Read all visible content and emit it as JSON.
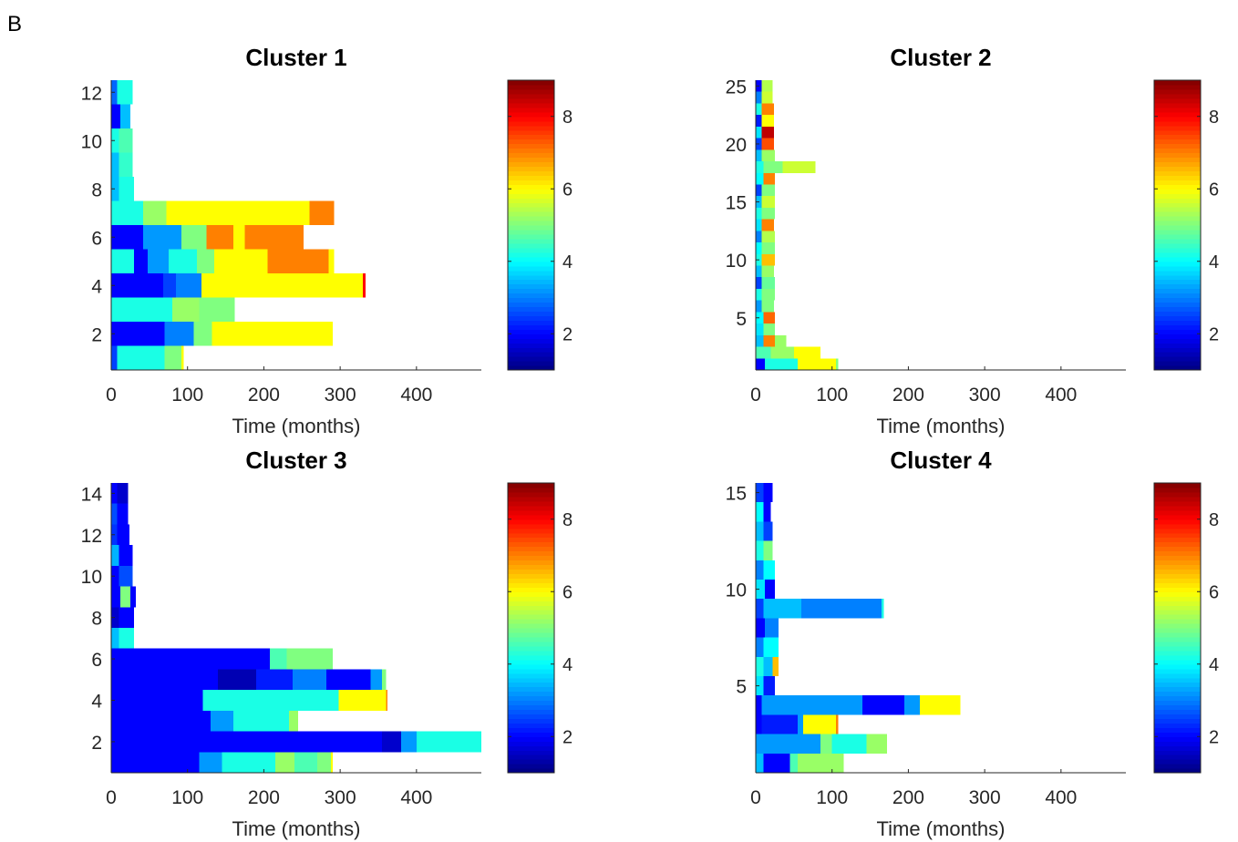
{
  "figure": {
    "panel_letter": "B"
  },
  "colormap": {
    "name": "jet",
    "cmin": 1,
    "cmax": 9,
    "ticks": [
      2,
      4,
      6,
      8
    ]
  },
  "chart_data": [
    {
      "type": "heatmap",
      "title": "Cluster 1",
      "xlabel": "Time (months)",
      "ylabel": "",
      "xlim": [
        0,
        485
      ],
      "ylim": [
        0.5,
        12.5
      ],
      "xticks": [
        0,
        100,
        200,
        300,
        400
      ],
      "yticks": [
        2,
        4,
        6,
        8,
        10,
        12
      ],
      "rows": [
        [
          [
            0,
            8,
            2.5
          ],
          [
            8,
            70,
            4.2
          ],
          [
            70,
            92,
            5.0
          ],
          [
            92,
            95,
            6.0
          ]
        ],
        [
          [
            0,
            70,
            2.0
          ],
          [
            70,
            108,
            3.0
          ],
          [
            108,
            132,
            5.0
          ],
          [
            132,
            290,
            6.0
          ]
        ],
        [
          [
            0,
            80,
            4.2
          ],
          [
            80,
            115,
            5.2
          ],
          [
            115,
            162,
            5.0
          ]
        ],
        [
          [
            0,
            68,
            2.0
          ],
          [
            68,
            85,
            2.5
          ],
          [
            85,
            118,
            3.0
          ],
          [
            118,
            330,
            6.0
          ],
          [
            330,
            333,
            8.0
          ]
        ],
        [
          [
            0,
            30,
            4.2
          ],
          [
            30,
            48,
            2.0
          ],
          [
            48,
            75,
            3.2
          ],
          [
            75,
            112,
            4.2
          ],
          [
            112,
            135,
            5.0
          ],
          [
            135,
            205,
            6.0
          ],
          [
            205,
            285,
            7.0
          ],
          [
            285,
            292,
            6.0
          ]
        ],
        [
          [
            0,
            42,
            2.0
          ],
          [
            42,
            92,
            3.2
          ],
          [
            92,
            125,
            5.0
          ],
          [
            125,
            160,
            7.0
          ],
          [
            160,
            175,
            6.0
          ],
          [
            175,
            252,
            7.0
          ]
        ],
        [
          [
            0,
            42,
            4.2
          ],
          [
            42,
            72,
            5.2
          ],
          [
            72,
            260,
            6.0
          ],
          [
            260,
            292,
            7.0
          ]
        ],
        [
          [
            0,
            10,
            3.5
          ],
          [
            10,
            30,
            4.2
          ]
        ],
        [
          [
            0,
            10,
            3.5
          ],
          [
            10,
            28,
            4.4
          ]
        ],
        [
          [
            0,
            10,
            4.2
          ],
          [
            10,
            28,
            4.6
          ]
        ],
        [
          [
            0,
            12,
            2.0
          ],
          [
            12,
            25,
            3.5
          ]
        ],
        [
          [
            0,
            8,
            2.8
          ],
          [
            8,
            28,
            4.2
          ]
        ]
      ]
    },
    {
      "type": "heatmap",
      "title": "Cluster 2",
      "xlabel": "Time (months)",
      "ylabel": "",
      "xlim": [
        0,
        485
      ],
      "ylim": [
        0.5,
        25.5
      ],
      "xticks": [
        0,
        100,
        200,
        300,
        400
      ],
      "yticks": [
        5,
        10,
        15,
        20,
        25
      ],
      "rows": [
        [
          [
            0,
            12,
            2.0
          ],
          [
            12,
            55,
            4.2
          ],
          [
            55,
            105,
            6.0
          ],
          [
            105,
            108,
            5.0
          ]
        ],
        [
          [
            0,
            20,
            4.6
          ],
          [
            20,
            50,
            5.2
          ],
          [
            50,
            85,
            6.0
          ]
        ],
        [
          [
            0,
            10,
            3.5
          ],
          [
            10,
            25,
            7.0
          ],
          [
            25,
            40,
            5.2
          ]
        ],
        [
          [
            0,
            10,
            3.8
          ],
          [
            10,
            25,
            5.0
          ]
        ],
        [
          [
            0,
            10,
            4.0
          ],
          [
            10,
            25,
            7.2
          ]
        ],
        [
          [
            0,
            8,
            3.2
          ],
          [
            8,
            24,
            5.0
          ]
        ],
        [
          [
            0,
            8,
            4.2
          ],
          [
            8,
            25,
            5.0
          ]
        ],
        [
          [
            0,
            8,
            2.5
          ],
          [
            8,
            25,
            4.8
          ]
        ],
        [
          [
            0,
            8,
            3.5
          ],
          [
            8,
            24,
            5.2
          ]
        ],
        [
          [
            0,
            8,
            4.2
          ],
          [
            8,
            25,
            6.5
          ]
        ],
        [
          [
            0,
            8,
            4.0
          ],
          [
            8,
            25,
            5.0
          ]
        ],
        [
          [
            0,
            8,
            3.0
          ],
          [
            8,
            25,
            5.4
          ]
        ],
        [
          [
            0,
            8,
            3.8
          ],
          [
            8,
            24,
            7.0
          ]
        ],
        [
          [
            0,
            8,
            4.2
          ],
          [
            8,
            25,
            5.0
          ]
        ],
        [
          [
            0,
            8,
            3.5
          ],
          [
            8,
            25,
            5.6
          ]
        ],
        [
          [
            0,
            8,
            2.5
          ],
          [
            8,
            25,
            5.0
          ]
        ],
        [
          [
            0,
            10,
            4.0
          ],
          [
            10,
            25,
            7.0
          ]
        ],
        [
          [
            0,
            10,
            4.2
          ],
          [
            10,
            35,
            5.0
          ],
          [
            35,
            78,
            5.6
          ]
        ],
        [
          [
            0,
            8,
            3.5
          ],
          [
            8,
            25,
            5.2
          ]
        ],
        [
          [
            0,
            8,
            2.5
          ],
          [
            8,
            24,
            7.4
          ]
        ],
        [
          [
            0,
            8,
            3.8
          ],
          [
            8,
            24,
            8.5
          ]
        ],
        [
          [
            0,
            8,
            2.2
          ],
          [
            8,
            24,
            6.0
          ]
        ],
        [
          [
            0,
            8,
            4.2
          ],
          [
            8,
            24,
            7.0
          ]
        ],
        [
          [
            0,
            8,
            3.0
          ],
          [
            8,
            22,
            5.6
          ]
        ],
        [
          [
            0,
            8,
            2.0
          ],
          [
            8,
            22,
            5.4
          ]
        ]
      ]
    },
    {
      "type": "heatmap",
      "title": "Cluster 3",
      "xlabel": "Time (months)",
      "ylabel": "",
      "xlim": [
        0,
        485
      ],
      "ylim": [
        0.5,
        14.5
      ],
      "xticks": [
        0,
        100,
        200,
        300,
        400
      ],
      "yticks": [
        2,
        4,
        6,
        8,
        10,
        12,
        14
      ],
      "rows": [
        [
          [
            0,
            115,
            2.0
          ],
          [
            115,
            145,
            3.2
          ],
          [
            145,
            215,
            4.2
          ],
          [
            215,
            240,
            5.2
          ],
          [
            240,
            270,
            4.6
          ],
          [
            270,
            288,
            5.0
          ],
          [
            288,
            290,
            6.0
          ]
        ],
        [
          [
            0,
            355,
            2.0
          ],
          [
            355,
            380,
            1.6
          ],
          [
            380,
            400,
            3.2
          ],
          [
            400,
            485,
            4.2
          ]
        ],
        [
          [
            0,
            130,
            2.0
          ],
          [
            130,
            160,
            3.2
          ],
          [
            160,
            233,
            4.2
          ],
          [
            233,
            245,
            5.2
          ]
        ],
        [
          [
            0,
            120,
            2.0
          ],
          [
            120,
            298,
            4.2
          ],
          [
            298,
            360,
            6.0
          ],
          [
            360,
            362,
            7.0
          ]
        ],
        [
          [
            0,
            140,
            2.0
          ],
          [
            140,
            190,
            1.4
          ],
          [
            190,
            238,
            2.2
          ],
          [
            238,
            282,
            3.0
          ],
          [
            282,
            340,
            2.0
          ],
          [
            340,
            355,
            3.2
          ],
          [
            355,
            360,
            5.0
          ]
        ],
        [
          [
            0,
            208,
            2.0
          ],
          [
            208,
            230,
            4.6
          ],
          [
            230,
            290,
            5.0
          ]
        ],
        [
          [
            0,
            10,
            3.5
          ],
          [
            10,
            30,
            4.2
          ]
        ],
        [
          [
            0,
            10,
            1.6
          ],
          [
            10,
            30,
            2.0
          ]
        ],
        [
          [
            0,
            12,
            2.0
          ],
          [
            12,
            25,
            5.0
          ],
          [
            25,
            32,
            2.0
          ]
        ],
        [
          [
            0,
            10,
            2.0
          ],
          [
            10,
            28,
            2.6
          ]
        ],
        [
          [
            0,
            10,
            3.4
          ],
          [
            10,
            28,
            2.0
          ]
        ],
        [
          [
            0,
            8,
            2.4
          ],
          [
            8,
            24,
            2.0
          ]
        ],
        [
          [
            0,
            8,
            2.6
          ],
          [
            8,
            22,
            2.0
          ]
        ],
        [
          [
            0,
            8,
            2.0
          ],
          [
            8,
            22,
            1.6
          ]
        ]
      ]
    },
    {
      "type": "heatmap",
      "title": "Cluster 4",
      "xlabel": "Time (months)",
      "ylabel": "",
      "xlim": [
        0,
        485
      ],
      "ylim": [
        0.5,
        15.5
      ],
      "xticks": [
        0,
        100,
        200,
        300,
        400
      ],
      "yticks": [
        5,
        10,
        15
      ],
      "rows": [
        [
          [
            0,
            10,
            3.5
          ],
          [
            10,
            45,
            2.0
          ],
          [
            45,
            55,
            4.6
          ],
          [
            55,
            115,
            5.2
          ]
        ],
        [
          [
            0,
            85,
            3.2
          ],
          [
            85,
            100,
            5.0
          ],
          [
            100,
            145,
            4.2
          ],
          [
            145,
            172,
            5.2
          ]
        ],
        [
          [
            0,
            8,
            2.0
          ],
          [
            8,
            55,
            2.2
          ],
          [
            55,
            62,
            3.2
          ],
          [
            62,
            105,
            6.0
          ],
          [
            105,
            108,
            7.0
          ]
        ],
        [
          [
            0,
            8,
            2.0
          ],
          [
            8,
            140,
            3.2
          ],
          [
            140,
            195,
            2.0
          ],
          [
            195,
            215,
            3.2
          ],
          [
            215,
            268,
            6.0
          ]
        ],
        [
          [
            0,
            10,
            3.8
          ],
          [
            10,
            25,
            2.2
          ]
        ],
        [
          [
            0,
            10,
            4.2
          ],
          [
            10,
            22,
            3.5
          ],
          [
            22,
            30,
            6.5
          ]
        ],
        [
          [
            0,
            10,
            3.0
          ],
          [
            10,
            30,
            4.0
          ]
        ],
        [
          [
            0,
            12,
            2.0
          ],
          [
            12,
            30,
            3.0
          ]
        ],
        [
          [
            0,
            10,
            2.5
          ],
          [
            10,
            60,
            3.5
          ],
          [
            60,
            165,
            3.0
          ],
          [
            165,
            168,
            4.2
          ]
        ],
        [
          [
            0,
            12,
            3.8
          ],
          [
            12,
            25,
            2.0
          ]
        ],
        [
          [
            0,
            10,
            3.0
          ],
          [
            10,
            25,
            4.0
          ]
        ],
        [
          [
            0,
            10,
            4.2
          ],
          [
            10,
            22,
            5.0
          ]
        ],
        [
          [
            0,
            10,
            3.5
          ],
          [
            10,
            22,
            2.5
          ]
        ],
        [
          [
            0,
            10,
            4.0
          ],
          [
            10,
            20,
            2.0
          ]
        ],
        [
          [
            0,
            10,
            2.5
          ],
          [
            10,
            22,
            2.0
          ]
        ]
      ]
    }
  ]
}
